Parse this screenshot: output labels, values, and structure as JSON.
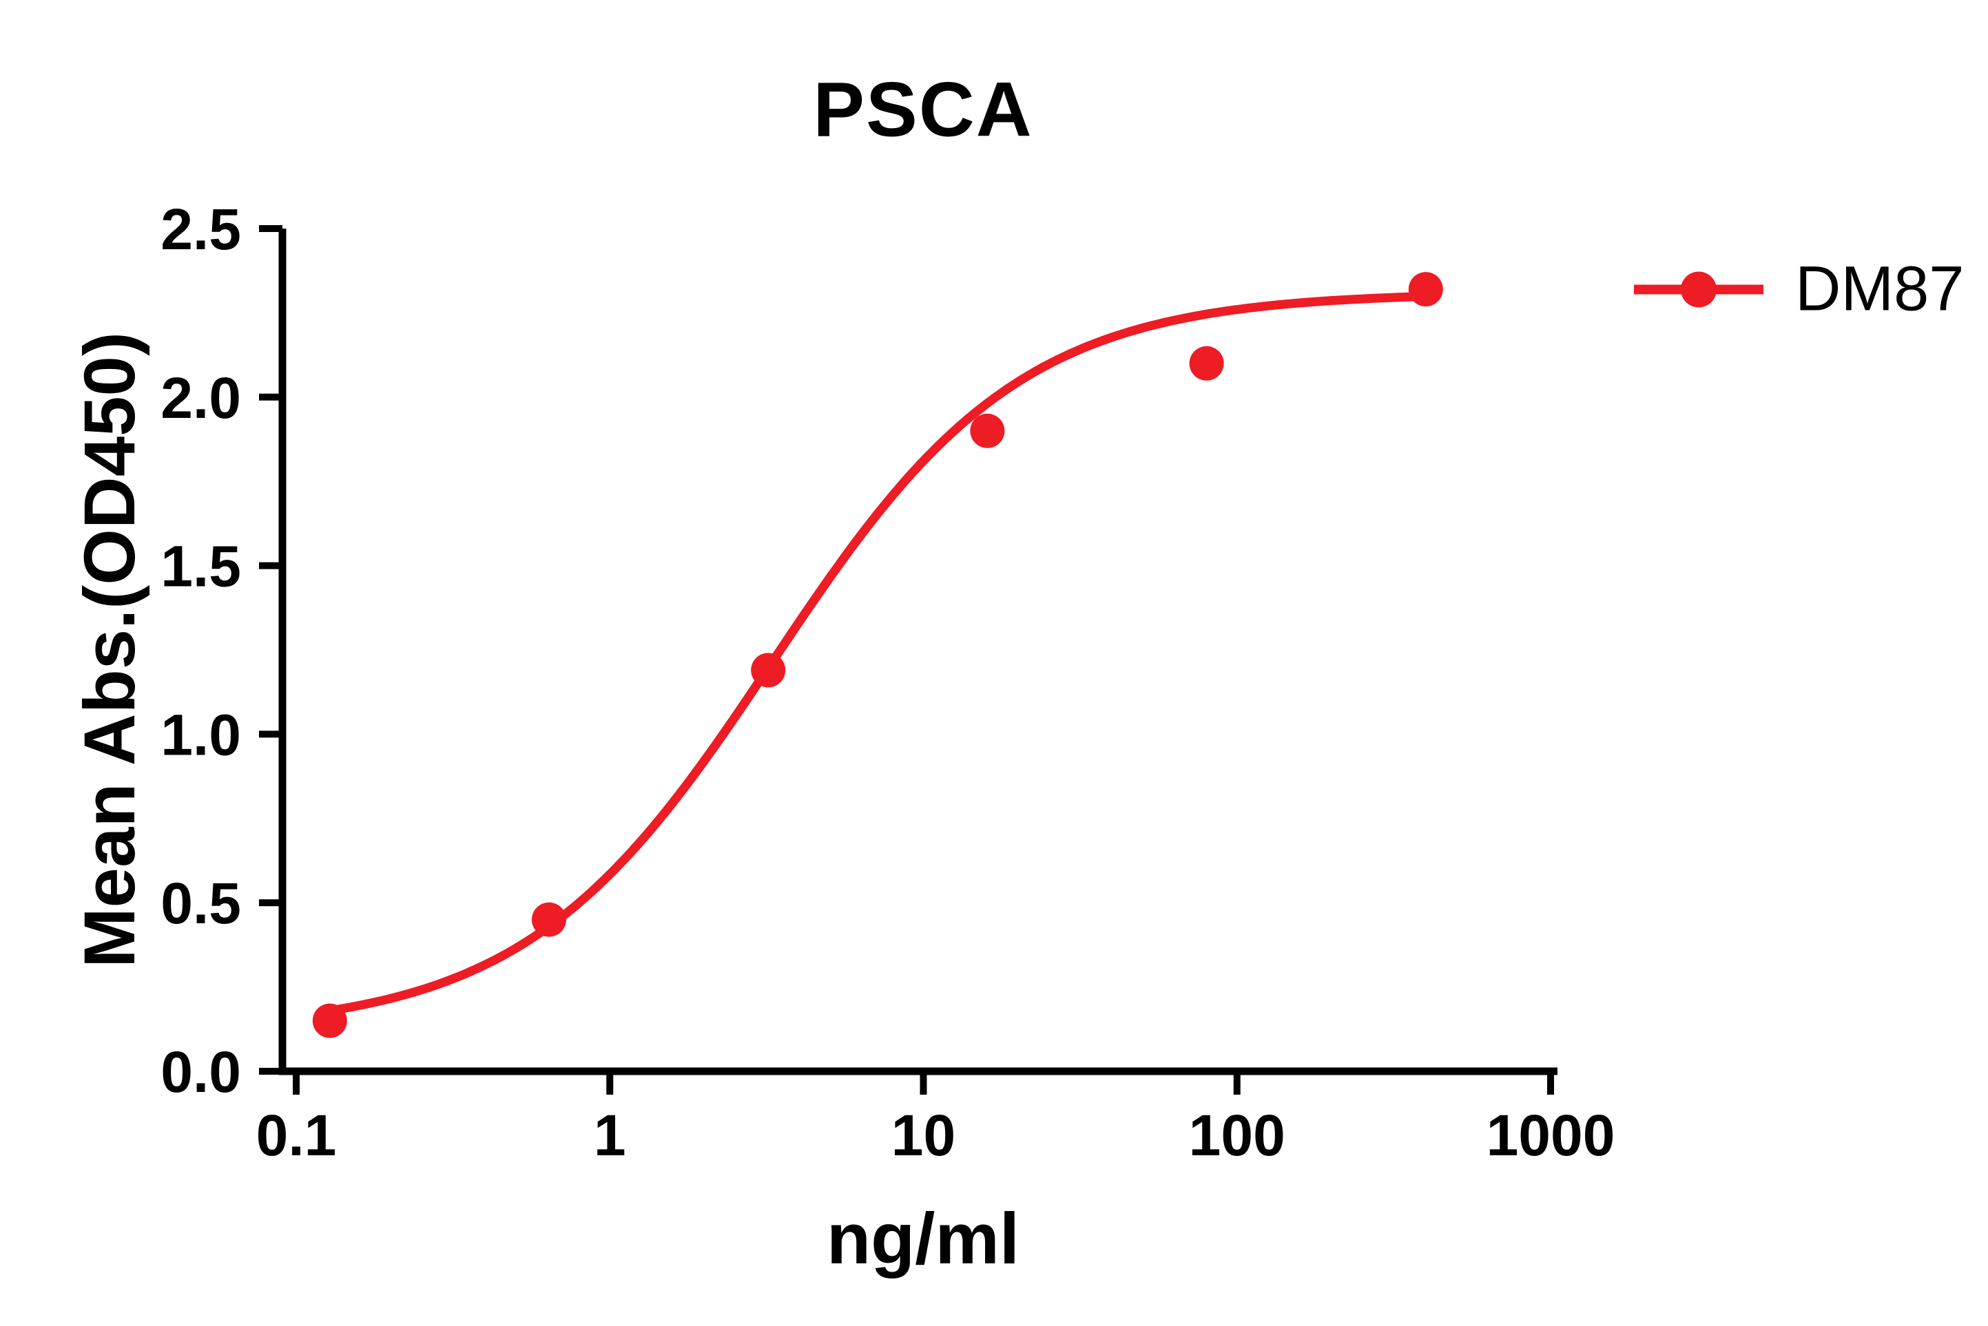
{
  "chart_data": {
    "type": "scatter",
    "title": "PSCA",
    "xlabel": "ng/ml",
    "ylabel": "Mean Abs.(OD450)",
    "x_scale": "log10",
    "xlim": [
      0.1,
      1000
    ],
    "ylim": [
      0.0,
      2.5
    ],
    "x_ticks": [
      0.1,
      1,
      10,
      100,
      1000
    ],
    "x_tick_labels": [
      "0.1",
      "1",
      "10",
      "100",
      "1000"
    ],
    "y_ticks": [
      0.0,
      0.5,
      1.0,
      1.5,
      2.0,
      2.5
    ],
    "y_tick_labels": [
      "0.0",
      "0.5",
      "1.0",
      "1.5",
      "2.0",
      "2.5"
    ],
    "grid": false,
    "legend_position": "right-top",
    "axis_color": "#000000",
    "series": [
      {
        "name": "DM87",
        "color": "#ee1c25",
        "marker": "circle",
        "points": [
          {
            "x": 0.128,
            "y": 0.15
          },
          {
            "x": 0.64,
            "y": 0.45
          },
          {
            "x": 3.2,
            "y": 1.19
          },
          {
            "x": 16,
            "y": 1.9
          },
          {
            "x": 80,
            "y": 2.1
          },
          {
            "x": 400,
            "y": 2.32
          }
        ],
        "fit": {
          "model": "4PL",
          "bottom": 0.12,
          "top": 2.31,
          "ec50": 3.3,
          "hill": 1.1,
          "x_start": 0.128,
          "x_end": 400
        }
      }
    ]
  }
}
